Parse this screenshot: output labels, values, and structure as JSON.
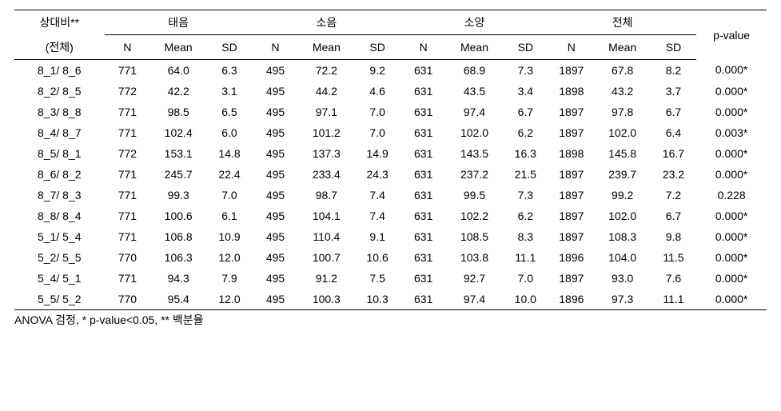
{
  "header": {
    "rowhead_line1": "상대비**",
    "rowhead_line2": "(전체)",
    "group1": "태음",
    "group2": "소음",
    "group3": "소양",
    "group4": "전체",
    "pvalue": "p-value",
    "sub_n": "N",
    "sub_mean": "Mean",
    "sub_sd": "SD"
  },
  "rows": [
    {
      "label": "8_1/ 8_6",
      "g1": {
        "n": "771",
        "mean": "64.0",
        "sd": "6.3"
      },
      "g2": {
        "n": "495",
        "mean": "72.2",
        "sd": "9.2"
      },
      "g3": {
        "n": "631",
        "mean": "68.9",
        "sd": "7.3"
      },
      "g4": {
        "n": "1897",
        "mean": "67.8",
        "sd": "8.2"
      },
      "p": "0.000*"
    },
    {
      "label": "8_2/ 8_5",
      "g1": {
        "n": "772",
        "mean": "42.2",
        "sd": "3.1"
      },
      "g2": {
        "n": "495",
        "mean": "44.2",
        "sd": "4.6"
      },
      "g3": {
        "n": "631",
        "mean": "43.5",
        "sd": "3.4"
      },
      "g4": {
        "n": "1898",
        "mean": "43.2",
        "sd": "3.7"
      },
      "p": "0.000*"
    },
    {
      "label": "8_3/ 8_8",
      "g1": {
        "n": "771",
        "mean": "98.5",
        "sd": "6.5"
      },
      "g2": {
        "n": "495",
        "mean": "97.1",
        "sd": "7.0"
      },
      "g3": {
        "n": "631",
        "mean": "97.4",
        "sd": "6.7"
      },
      "g4": {
        "n": "1897",
        "mean": "97.8",
        "sd": "6.7"
      },
      "p": "0.000*"
    },
    {
      "label": "8_4/ 8_7",
      "g1": {
        "n": "771",
        "mean": "102.4",
        "sd": "6.0"
      },
      "g2": {
        "n": "495",
        "mean": "101.2",
        "sd": "7.0"
      },
      "g3": {
        "n": "631",
        "mean": "102.0",
        "sd": "6.2"
      },
      "g4": {
        "n": "1897",
        "mean": "102.0",
        "sd": "6.4"
      },
      "p": "0.003*"
    },
    {
      "label": "8_5/ 8_1",
      "g1": {
        "n": "772",
        "mean": "153.1",
        "sd": "14.8"
      },
      "g2": {
        "n": "495",
        "mean": "137.3",
        "sd": "14.9"
      },
      "g3": {
        "n": "631",
        "mean": "143.5",
        "sd": "16.3"
      },
      "g4": {
        "n": "1898",
        "mean": "145.8",
        "sd": "16.7"
      },
      "p": "0.000*"
    },
    {
      "label": "8_6/ 8_2",
      "g1": {
        "n": "771",
        "mean": "245.7",
        "sd": "22.4"
      },
      "g2": {
        "n": "495",
        "mean": "233.4",
        "sd": "24.3"
      },
      "g3": {
        "n": "631",
        "mean": "237.2",
        "sd": "21.5"
      },
      "g4": {
        "n": "1897",
        "mean": "239.7",
        "sd": "23.2"
      },
      "p": "0.000*"
    },
    {
      "label": "8_7/ 8_3",
      "g1": {
        "n": "771",
        "mean": "99.3",
        "sd": "7.0"
      },
      "g2": {
        "n": "495",
        "mean": "98.7",
        "sd": "7.4"
      },
      "g3": {
        "n": "631",
        "mean": "99.5",
        "sd": "7.3"
      },
      "g4": {
        "n": "1897",
        "mean": "99.2",
        "sd": "7.2"
      },
      "p": "0.228"
    },
    {
      "label": "8_8/ 8_4",
      "g1": {
        "n": "771",
        "mean": "100.6",
        "sd": "6.1"
      },
      "g2": {
        "n": "495",
        "mean": "104.1",
        "sd": "7.4"
      },
      "g3": {
        "n": "631",
        "mean": "102.2",
        "sd": "6.2"
      },
      "g4": {
        "n": "1897",
        "mean": "102.0",
        "sd": "6.7"
      },
      "p": "0.000*"
    },
    {
      "label": "5_1/ 5_4",
      "g1": {
        "n": "771",
        "mean": "106.8",
        "sd": "10.9"
      },
      "g2": {
        "n": "495",
        "mean": "110.4",
        "sd": "9.1"
      },
      "g3": {
        "n": "631",
        "mean": "108.5",
        "sd": "8.3"
      },
      "g4": {
        "n": "1897",
        "mean": "108.3",
        "sd": "9.8"
      },
      "p": "0.000*"
    },
    {
      "label": "5_2/ 5_5",
      "g1": {
        "n": "770",
        "mean": "106.3",
        "sd": "12.0"
      },
      "g2": {
        "n": "495",
        "mean": "100.7",
        "sd": "10.6"
      },
      "g3": {
        "n": "631",
        "mean": "103.8",
        "sd": "11.1"
      },
      "g4": {
        "n": "1896",
        "mean": "104.0",
        "sd": "11.5"
      },
      "p": "0.000*"
    },
    {
      "label": "5_4/ 5_1",
      "g1": {
        "n": "771",
        "mean": "94.3",
        "sd": "7.9"
      },
      "g2": {
        "n": "495",
        "mean": "91.2",
        "sd": "7.5"
      },
      "g3": {
        "n": "631",
        "mean": "92.7",
        "sd": "7.0"
      },
      "g4": {
        "n": "1897",
        "mean": "93.0",
        "sd": "7.6"
      },
      "p": "0.000*"
    },
    {
      "label": "5_5/ 5_2",
      "g1": {
        "n": "770",
        "mean": "95.4",
        "sd": "12.0"
      },
      "g2": {
        "n": "495",
        "mean": "100.3",
        "sd": "10.3"
      },
      "g3": {
        "n": "631",
        "mean": "97.4",
        "sd": "10.0"
      },
      "g4": {
        "n": "1896",
        "mean": "97.3",
        "sd": "11.1"
      },
      "p": "0.000*"
    }
  ],
  "footnote": "ANOVA 검정, * p-value<0.05, ** 백분율"
}
